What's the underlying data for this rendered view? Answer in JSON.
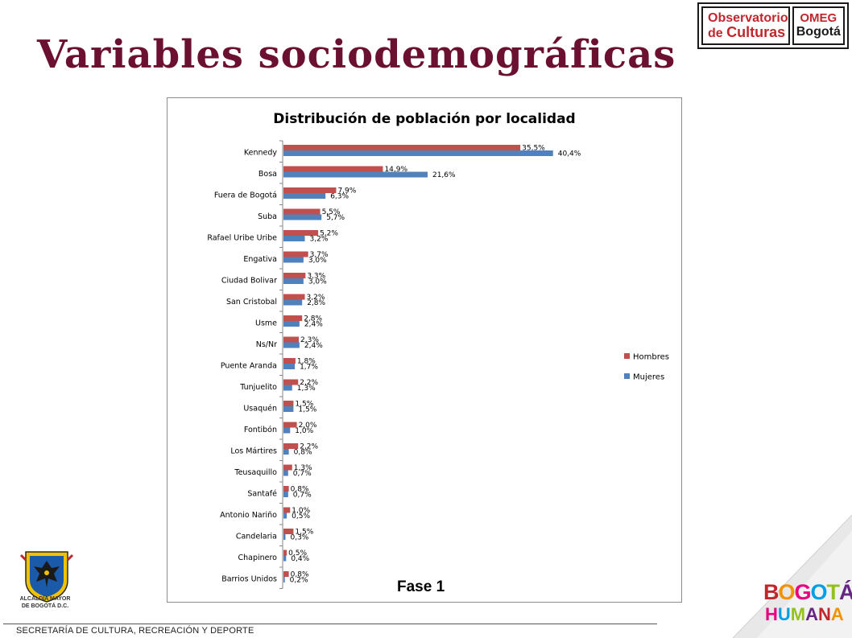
{
  "slide": {
    "title": "Variables sociodemográficas",
    "footer": "SECRETARÍA DE CULTURA, RECREACIÓN Y DEPORTE",
    "phase_label": "Fase 1"
  },
  "logos": {
    "observatorio_l1": "Observatorio",
    "observatorio_l2a": "de ",
    "observatorio_l2b": "Culturas",
    "omeg_l1": "OMEG",
    "omeg_l2": "Bogotá",
    "alcaldia_l1": "ALCALDÍA MAYOR",
    "alcaldia_l2": "DE BOGOTÁ D.C.",
    "bogota_l1": "BOGOTÁ",
    "bogota_l2": "HUMANA"
  },
  "colors": {
    "title": "#6b1030",
    "hombres": "#c0504d",
    "mujeres": "#4f81bd",
    "axis": "#868686"
  },
  "chart_data": {
    "type": "bar",
    "orientation": "horizontal",
    "title": "Distribución de población por localidad",
    "categories": [
      "Kennedy",
      "Bosa",
      "Fuera de Bogotá",
      "Suba",
      "Rafael Uribe Uribe",
      "Engativa",
      "Ciudad Bolivar",
      "San Cristobal",
      "Usme",
      "Ns/Nr",
      "Puente Aranda",
      "Tunjuelito",
      "Usaquén",
      "Fontibón",
      "Los Mártires",
      "Teusaquillo",
      "Santafé",
      "Antonio Nariño",
      "Candelaria",
      "Chapinero",
      "Barrios Unidos"
    ],
    "series": [
      {
        "name": "Hombres",
        "values": [
          35.5,
          14.9,
          7.9,
          5.5,
          5.2,
          3.7,
          3.3,
          3.2,
          2.8,
          2.3,
          1.8,
          2.2,
          1.5,
          2.0,
          2.2,
          1.3,
          0.8,
          1.0,
          1.5,
          0.5,
          0.8
        ],
        "labels": [
          "35,5%",
          "14,9%",
          "7,9%",
          "5,5%",
          "5,2%",
          "3,7%",
          "3,3%",
          "3,2%",
          "2,8%",
          "2,3%",
          "1,8%",
          "2,2%",
          "1,5%",
          "2,0%",
          "2,2%",
          "1,3%",
          "0,8%",
          "1,0%",
          "1,5%",
          "0,5%",
          "0,8%"
        ]
      },
      {
        "name": "Mujeres",
        "values": [
          40.4,
          21.6,
          6.3,
          5.7,
          3.2,
          3.0,
          3.0,
          2.8,
          2.4,
          2.4,
          1.7,
          1.3,
          1.5,
          1.0,
          0.8,
          0.7,
          0.7,
          0.5,
          0.3,
          0.4,
          0.2
        ],
        "labels": [
          "40,4%",
          "21,6%",
          "6,3%",
          "5,7%",
          "3,2%",
          "3,0%",
          "3,0%",
          "2,8%",
          "2,4%",
          "2,4%",
          "1,7%",
          "1,3%",
          "1,5%",
          "1,0%",
          "0,8%",
          "0,7%",
          "0,7%",
          "0,5%",
          "0,3%",
          "0,4%",
          "0,2%"
        ]
      }
    ],
    "xlim": [
      0,
      42
    ],
    "legend": "right",
    "grid": false
  }
}
